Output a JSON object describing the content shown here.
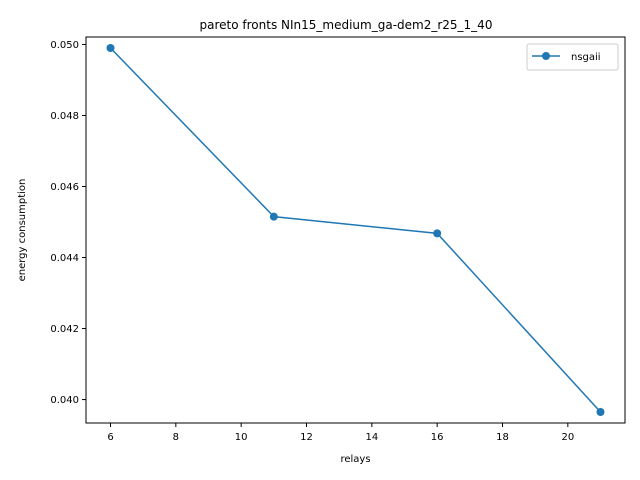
{
  "colors": {
    "series": "#1f77b4",
    "axes": "#000000",
    "legend_border": "#cccccc",
    "background": "#ffffff"
  },
  "chart_data": {
    "type": "line",
    "title": "pareto fronts NIn15_medium_ga-dem2_r25_1_40",
    "xlabel": "relays",
    "ylabel": "energy consumption",
    "xlim": [
      5.25,
      21.75
    ],
    "ylim": [
      0.03934,
      0.05021
    ],
    "xticks": [
      6,
      8,
      10,
      12,
      14,
      16,
      18,
      20
    ],
    "yticks": [
      0.04,
      0.042,
      0.044,
      0.046,
      0.048,
      0.05
    ],
    "ytick_labels": [
      "0.040",
      "0.042",
      "0.044",
      "0.046",
      "0.048",
      "0.050"
    ],
    "grid": false,
    "legend_position": "top-right",
    "series": [
      {
        "name": "nsgaii",
        "marker": "circle",
        "x": [
          6,
          11,
          16,
          21
        ],
        "y": [
          0.0499,
          0.04515,
          0.04468,
          0.03965
        ]
      }
    ]
  }
}
